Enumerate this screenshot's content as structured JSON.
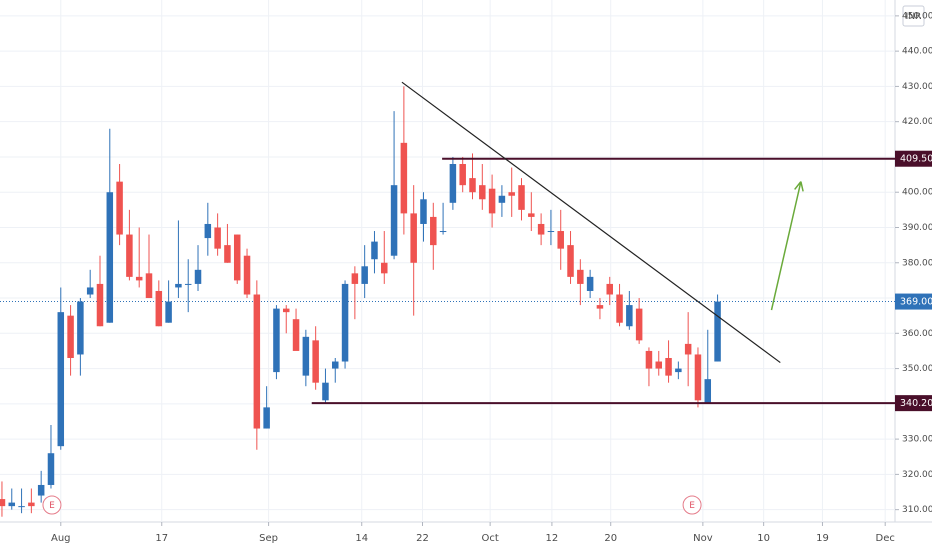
{
  "chart_data": {
    "type": "candlestick",
    "currency": "INR",
    "up_color": "#2f72b8",
    "down_color": "#ef5350",
    "grid": true,
    "x": [
      0,
      1,
      2,
      3,
      4,
      5,
      6,
      7,
      8,
      9,
      10,
      11,
      12,
      13,
      14,
      15,
      16,
      17,
      18,
      19,
      20,
      21,
      22,
      23,
      24,
      25,
      26,
      27,
      28,
      29,
      30,
      31,
      32,
      33,
      34,
      35,
      36,
      37,
      38,
      39,
      40,
      41,
      42,
      43,
      44,
      45,
      46,
      47,
      48,
      49,
      50,
      51,
      52,
      53,
      54,
      55,
      56,
      57,
      58,
      59,
      60,
      61,
      62,
      63,
      64,
      65,
      66,
      67,
      68,
      69,
      70,
      71,
      72,
      73
    ],
    "open": [
      313,
      311,
      311,
      312,
      314,
      317,
      328,
      365,
      354,
      371,
      374,
      363,
      403,
      388,
      376,
      377,
      372,
      363,
      373,
      374,
      374,
      387,
      390,
      385,
      388,
      382,
      371,
      333,
      349,
      367,
      364,
      348,
      358,
      341,
      350,
      352,
      377,
      374,
      381,
      380,
      382,
      414,
      394,
      391,
      393,
      389,
      397,
      408,
      404,
      402,
      401,
      397,
      400,
      402,
      394,
      391,
      389,
      389,
      385,
      378,
      372,
      368,
      374,
      371,
      362,
      367,
      355,
      352,
      353,
      349,
      357,
      354,
      340,
      352
    ],
    "high": [
      318,
      316,
      316,
      316,
      321,
      334,
      373,
      368,
      370,
      378,
      382,
      418,
      408,
      395,
      390,
      388,
      375,
      375,
      392,
      381,
      385,
      397,
      394,
      391,
      388,
      384,
      375,
      345,
      368,
      368,
      367,
      361,
      362,
      350,
      353,
      375,
      379,
      385,
      389,
      389,
      423,
      430,
      402,
      400,
      397,
      397,
      410,
      410,
      411,
      408,
      405,
      402,
      407,
      404,
      400,
      394,
      395,
      395,
      389,
      381,
      378,
      370,
      376,
      374,
      372,
      370,
      356,
      355,
      358,
      352,
      366,
      356,
      361,
      371
    ],
    "low": [
      308,
      310,
      309,
      309,
      312,
      316,
      327,
      348,
      348,
      370,
      362,
      363,
      385,
      375,
      373,
      370,
      362,
      363,
      370,
      366,
      372,
      382,
      382,
      380,
      374,
      370,
      327,
      333,
      347,
      360,
      356,
      345,
      344,
      340,
      346,
      350,
      364,
      370,
      377,
      374,
      381,
      388,
      365,
      386,
      378,
      388,
      395,
      400,
      398,
      395,
      390,
      393,
      393,
      392,
      389,
      385,
      385,
      378,
      374,
      368,
      370,
      364,
      368,
      362,
      361,
      357,
      345,
      348,
      346,
      347,
      345,
      339,
      340,
      352
    ],
    "close": [
      311,
      312,
      311,
      311,
      317,
      326,
      366,
      353,
      369,
      373,
      362,
      400,
      388,
      376,
      375,
      370,
      362,
      369,
      374,
      374,
      378,
      391,
      384,
      380,
      375,
      371,
      333,
      339,
      367,
      366,
      355,
      359,
      346,
      346,
      352,
      374,
      374,
      379,
      386,
      377,
      402,
      394,
      380,
      398,
      385,
      389,
      408,
      402,
      400,
      398,
      394,
      399,
      399,
      395,
      393,
      388,
      389,
      384,
      376,
      374,
      376,
      367,
      371,
      363,
      368,
      358,
      350,
      350,
      348,
      350,
      354,
      341,
      347,
      369
    ],
    "xlim": [
      -0.2,
      91.1
    ],
    "ylim": [
      306.5,
      454.5
    ],
    "xticks": [
      {
        "value": 6,
        "label": "Aug"
      },
      {
        "value": 16.3,
        "label": "17"
      },
      {
        "value": 27.2,
        "label": "Sep"
      },
      {
        "value": 36.7,
        "label": "14"
      },
      {
        "value": 42.9,
        "label": "22"
      },
      {
        "value": 49.8,
        "label": "Oct"
      },
      {
        "value": 56.1,
        "label": "12"
      },
      {
        "value": 62.1,
        "label": "20"
      },
      {
        "value": 71.5,
        "label": "Nov"
      },
      {
        "value": 77.7,
        "label": "10"
      },
      {
        "value": 83.7,
        "label": "19"
      },
      {
        "value": 90.1,
        "label": "Dec"
      }
    ],
    "yticks": [
      {
        "value": 310,
        "label": "310.00"
      },
      {
        "value": 320,
        "label": "320.00"
      },
      {
        "value": 330,
        "label": "330.00"
      },
      {
        "value": 340,
        "label": "340.00"
      },
      {
        "value": 350,
        "label": "350.00"
      },
      {
        "value": 360,
        "label": "360.00"
      },
      {
        "value": 370,
        "label": "370.00"
      },
      {
        "value": 380,
        "label": "380.00"
      },
      {
        "value": 390,
        "label": "390.00"
      },
      {
        "value": 400,
        "label": "400.00"
      },
      {
        "value": 410,
        "label": "410.00"
      },
      {
        "value": 420,
        "label": "420.00"
      },
      {
        "value": 430,
        "label": "430.00"
      },
      {
        "value": 440,
        "label": "440.00"
      },
      {
        "value": 450,
        "label": "450.00"
      }
    ],
    "levels": [
      {
        "value": 409.5,
        "label": "409.50",
        "start": 44.9,
        "color": "#4a0f2a"
      },
      {
        "value": 340.2,
        "label": "340.20",
        "start": 31.6,
        "color": "#4a0f2a"
      }
    ],
    "last_price": {
      "value": 369,
      "label": "369.00",
      "color": "#2f72b8"
    },
    "trendline": {
      "x": [
        40.8,
        79.4
      ],
      "y": [
        431.2,
        351.7
      ],
      "color": "#222222"
    },
    "arrow": {
      "x": [
        78.5,
        81.5
      ],
      "y": [
        366.6,
        403
      ],
      "color": "#6aaa3a"
    },
    "earnings": [
      {
        "x": 5.1,
        "label": "E"
      },
      {
        "x": 70.4,
        "label": "E"
      }
    ]
  }
}
